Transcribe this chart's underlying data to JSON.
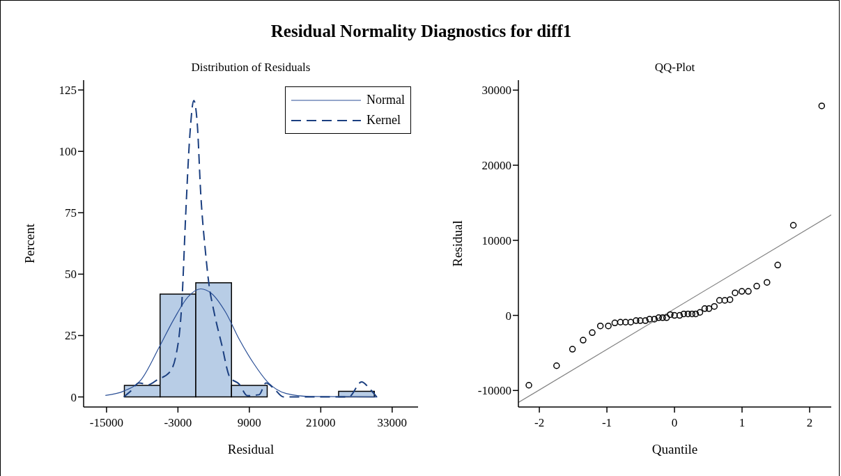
{
  "chart_data": [
    {
      "type": "histogram",
      "title": "Residual Normality Diagnostics for diff1",
      "subtitle": "Distribution of Residuals",
      "xlabel": "Residual",
      "ylabel": "Percent",
      "bins": [
        -12000,
        -6000,
        0,
        6000,
        12000,
        18000,
        24000,
        30000
      ],
      "values": [
        4.7,
        41.9,
        46.5,
        4.7,
        0,
        0,
        2.3
      ],
      "color": "#b8cde6",
      "series": [
        {
          "name": "Normal",
          "type": "line",
          "color": "#2a4f96",
          "line_style": "solid",
          "marker": "none",
          "x": [
            -15190,
            -12100,
            -9160,
            -6140,
            -3670,
            -1320,
            830,
            2660,
            5010,
            7360,
            9710,
            12060,
            15190,
            19110,
            30500
          ],
          "values": [
            0.6,
            2.4,
            7.1,
            20.3,
            31.7,
            40.7,
            44.0,
            42.1,
            34.5,
            23.2,
            13.7,
            6.1,
            1.4,
            0.2,
            0
          ]
        },
        {
          "name": "Kernel",
          "type": "line",
          "color": "#1b3f80",
          "line_style": "dashed",
          "marker": "none",
          "x": [
            -12100,
            -10920,
            -9550,
            -7980,
            -6410,
            -4460,
            -3280,
            -2300,
            -1710,
            -1000,
            -340,
            250,
            830,
            1620,
            2210,
            2990,
            4360,
            5730,
            7300,
            8670,
            10630,
            11810,
            13170,
            14740,
            25700,
            27850,
            29230,
            30400
          ],
          "values": [
            0,
            2.4,
            5.7,
            5.0,
            7.1,
            9.9,
            17.5,
            40.2,
            73.4,
            106.5,
            120.7,
            111.2,
            82.8,
            59.2,
            45.9,
            35.5,
            21.3,
            8.0,
            5.2,
            0.5,
            0.9,
            5.7,
            3.3,
            0,
            0,
            6.1,
            3.3,
            0
          ]
        }
      ],
      "xlim": [
        -18850,
        37350
      ],
      "xticks": [
        -15000,
        -3000,
        9000,
        21000,
        33000
      ],
      "ylim": [
        -4.1,
        129
      ],
      "yticks": [
        0,
        25,
        50,
        75,
        100,
        125
      ],
      "legend": "top right",
      "grid": false
    },
    {
      "type": "scatter",
      "title": "QQ-Plot",
      "xlabel": "Quantile",
      "ylabel": "Residual",
      "series": [
        {
          "type": "scatter",
          "color": "#000000",
          "marker": "circle",
          "x": [
            -2.155,
            -1.745,
            -1.51,
            -1.352,
            -1.217,
            -1.097,
            -0.979,
            -0.883,
            -0.8,
            -0.724,
            -0.648,
            -0.569,
            -0.507,
            -0.431,
            -0.369,
            -0.297,
            -0.234,
            -0.176,
            -0.117,
            -0.062,
            0,
            0.076,
            0.138,
            0.2,
            0.259,
            0.314,
            0.376,
            0.448,
            0.51,
            0.59,
            0.666,
            0.745,
            0.821,
            0.897,
            0.997,
            1.093,
            1.217,
            1.369,
            1.528,
            1.759,
            2.179
          ],
          "values": [
            -9300,
            -6700,
            -4500,
            -3300,
            -2300,
            -1400,
            -1400,
            -1000,
            -900,
            -900,
            -900,
            -700,
            -700,
            -700,
            -500,
            -500,
            -300,
            -300,
            -300,
            100,
            0,
            0,
            200,
            200,
            200,
            200,
            400,
            900,
            900,
            1200,
            2000,
            2000,
            2100,
            3000,
            3200,
            3200,
            3900,
            4400,
            6700,
            12000,
            27900
          ]
        },
        {
          "type": "line",
          "color": "#808080",
          "line_style": "solid",
          "marker": "none",
          "x": [
            -2.31,
            2.32
          ],
          "values": [
            -11600,
            13400
          ]
        }
      ],
      "xlim": [
        -2.31,
        2.32
      ],
      "xticks": [
        -2,
        -1,
        0,
        1,
        2
      ],
      "ylim": [
        -12200,
        31330
      ],
      "yticks": [
        -10000,
        0,
        10000,
        20000,
        30000
      ],
      "grid": false
    }
  ]
}
